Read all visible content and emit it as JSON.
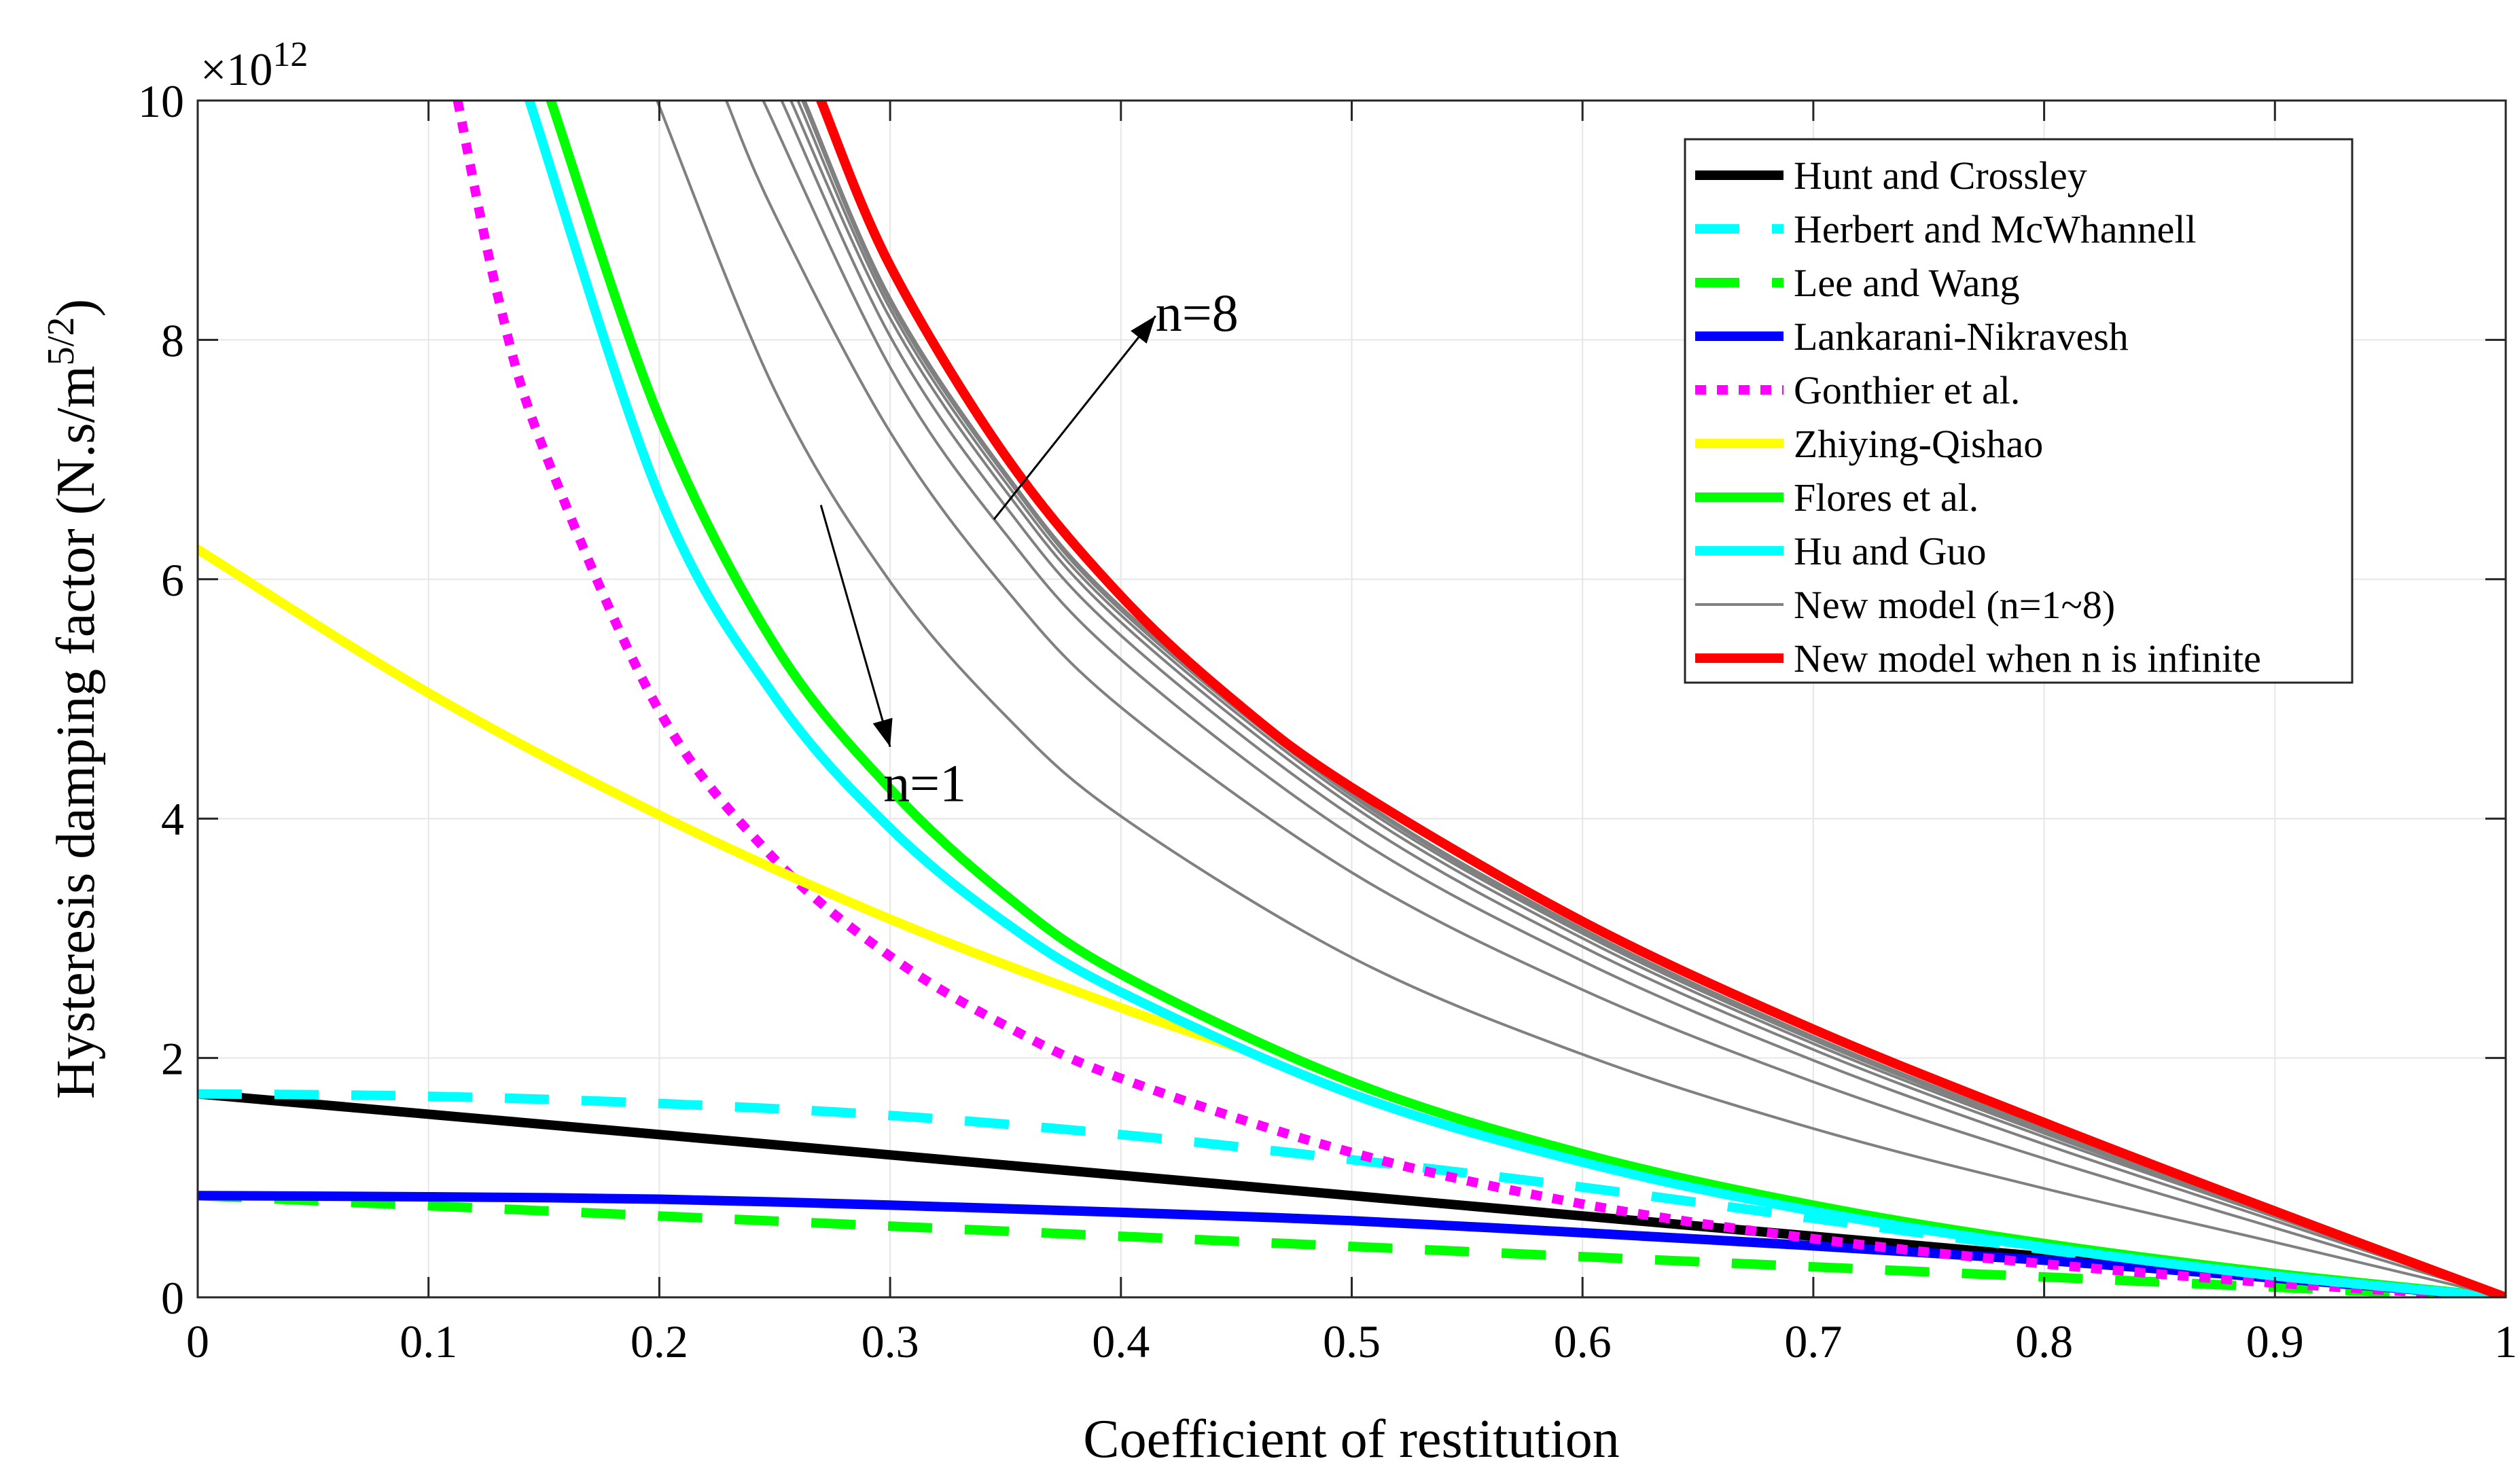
{
  "chart_data": {
    "type": "line",
    "title": "",
    "xlabel": "Coefficient of restitution",
    "ylabel": "Hysteresis damping factor (N.s/m",
    "ylabel_sup": "5/2",
    "ylabel_close": ")",
    "y_multiplier_prefix": "×10",
    "y_multiplier_exp": "12",
    "xlim": [
      0,
      1
    ],
    "ylim": [
      0,
      10
    ],
    "x_ticks": [
      0,
      0.1,
      0.2,
      0.3,
      0.4,
      0.5,
      0.6,
      0.7,
      0.8,
      0.9,
      1
    ],
    "x_tick_labels": [
      "0",
      "0.1",
      "0.2",
      "0.3",
      "0.4",
      "0.5",
      "0.6",
      "0.7",
      "0.8",
      "0.9",
      "1"
    ],
    "y_ticks": [
      0,
      2,
      4,
      6,
      8,
      10
    ],
    "y_tick_labels": [
      "0",
      "2",
      "4",
      "6",
      "8",
      "10"
    ],
    "grid": true,
    "legend_position": "top-right",
    "series": [
      {
        "name": "Hunt and Crossley",
        "color": "#000000",
        "style": "solid",
        "weight": "thick",
        "x": [
          0,
          0.2,
          0.4,
          0.6,
          0.8,
          1.0
        ],
        "y": [
          1.7,
          1.36,
          1.02,
          0.68,
          0.34,
          0
        ]
      },
      {
        "name": "Herbert and McWhannell",
        "color": "#00ffff",
        "style": "dashed",
        "weight": "thick",
        "x": [
          0,
          0.1,
          0.2,
          0.3,
          0.4,
          0.5,
          0.6,
          0.7,
          0.8,
          0.9,
          1.0
        ],
        "y": [
          1.7,
          1.68,
          1.62,
          1.52,
          1.36,
          1.15,
          0.92,
          0.66,
          0.4,
          0.16,
          0
        ]
      },
      {
        "name": "Lee and Wang",
        "color": "#00ff00",
        "style": "dashed",
        "weight": "thick",
        "x": [
          0,
          0.2,
          0.4,
          0.6,
          0.8,
          1.0
        ],
        "y": [
          0.85,
          0.68,
          0.51,
          0.34,
          0.17,
          0
        ]
      },
      {
        "name": "Lankarani-Nikravesh",
        "color": "#0000ff",
        "style": "solid",
        "weight": "thick",
        "x": [
          0,
          0.1,
          0.2,
          0.3,
          0.4,
          0.5,
          0.6,
          0.7,
          0.8,
          0.9,
          1.0
        ],
        "y": [
          0.85,
          0.84,
          0.82,
          0.77,
          0.71,
          0.64,
          0.54,
          0.43,
          0.31,
          0.16,
          0
        ]
      },
      {
        "name": "Gonthier et al.",
        "color": "#ff00ff",
        "style": "dotted",
        "weight": "thick",
        "x": [
          0.1126,
          0.13,
          0.15,
          0.2,
          0.25,
          0.3,
          0.35,
          0.4,
          0.5,
          0.6,
          0.7,
          0.8,
          0.9,
          1.0
        ],
        "y": [
          10,
          8.37,
          7.08,
          4.9,
          3.66,
          2.85,
          2.27,
          1.83,
          1.21,
          0.78,
          0.49,
          0.28,
          0.12,
          0
        ]
      },
      {
        "name": "Zhiying-Qishao",
        "color": "#ffff00",
        "style": "solid",
        "weight": "thick",
        "x": [
          0,
          0.1,
          0.2,
          0.3,
          0.4,
          0.45
        ],
        "y": [
          6.25,
          5.05,
          4.03,
          3.16,
          2.42,
          2.09
        ]
      },
      {
        "name": "Flores et al.",
        "color": "#00ff00",
        "style": "solid",
        "weight": "thick",
        "x": [
          0.153,
          0.2,
          0.25,
          0.3,
          0.35,
          0.4,
          0.5,
          0.6,
          0.7,
          0.8,
          0.9,
          1.0
        ],
        "y": [
          10,
          7.35,
          5.45,
          4.25,
          3.36,
          2.7,
          1.8,
          1.2,
          0.77,
          0.45,
          0.2,
          0
        ]
      },
      {
        "name": "Hu and Guo",
        "color": "#00ffff",
        "style": "solid",
        "weight": "thick",
        "x": [
          0.1437,
          0.2,
          0.25,
          0.3,
          0.35,
          0.4,
          0.5,
          0.6,
          0.7,
          0.8,
          0.9,
          1.0
        ],
        "y": [
          10,
          6.7,
          5.02,
          3.92,
          3.13,
          2.55,
          1.7,
          1.13,
          0.72,
          0.42,
          0.18,
          0
        ]
      },
      {
        "name": "New model (n=1~8)",
        "color": "#808080",
        "style": "solid",
        "weight": "thin",
        "n": 1,
        "x": [
          0.199,
          0.25,
          0.3,
          0.35,
          0.4,
          0.5,
          0.6,
          0.7,
          0.8,
          0.9,
          1.0
        ],
        "y": [
          10,
          7.58,
          5.98,
          4.86,
          4.02,
          2.84,
          2.03,
          1.41,
          0.91,
          0.46,
          0
        ]
      },
      {
        "name": "New model (n=1~8)",
        "color": "#808080",
        "style": "solid",
        "weight": "thin",
        "n": 2,
        "x": [
          0.229,
          0.25,
          0.3,
          0.35,
          0.4,
          0.5,
          0.6,
          0.7,
          0.8,
          0.9,
          1.0
        ],
        "y": [
          10,
          9.05,
          7.23,
          5.92,
          4.93,
          3.55,
          2.57,
          1.8,
          1.16,
          0.58,
          0
        ]
      },
      {
        "name": "New model (n=1~8)",
        "color": "#808080",
        "style": "solid",
        "weight": "thin",
        "n": 3,
        "x": [
          0.245,
          0.3,
          0.35,
          0.4,
          0.5,
          0.6,
          0.7,
          0.8,
          0.9,
          1.0
        ],
        "y": [
          10,
          7.77,
          6.38,
          5.33,
          3.86,
          2.81,
          1.98,
          1.28,
          0.64,
          0
        ]
      },
      {
        "name": "New model (n=1~8)",
        "color": "#808080",
        "style": "solid",
        "weight": "thin",
        "n": 4,
        "x": [
          0.253,
          0.3,
          0.35,
          0.4,
          0.5,
          0.6,
          0.7,
          0.8,
          0.9,
          1.0
        ],
        "y": [
          10,
          8.03,
          6.61,
          5.53,
          4.02,
          2.93,
          2.07,
          1.34,
          0.67,
          0
        ]
      },
      {
        "name": "New model (n=1~8)",
        "color": "#808080",
        "style": "solid",
        "weight": "thin",
        "n": 5,
        "x": [
          0.257,
          0.3,
          0.35,
          0.4,
          0.5,
          0.6,
          0.7,
          0.8,
          0.9,
          1.0
        ],
        "y": [
          10,
          8.18,
          6.74,
          5.64,
          4.11,
          3.0,
          2.12,
          1.37,
          0.68,
          0
        ]
      },
      {
        "name": "New model (n=1~8)",
        "color": "#808080",
        "style": "solid",
        "weight": "thin",
        "n": 6,
        "x": [
          0.26,
          0.3,
          0.35,
          0.4,
          0.5,
          0.6,
          0.7,
          0.8,
          0.9,
          1.0
        ],
        "y": [
          10,
          8.26,
          6.81,
          5.7,
          4.16,
          3.04,
          2.15,
          1.39,
          0.69,
          0
        ]
      },
      {
        "name": "New model (n=1~8)",
        "color": "#808080",
        "style": "solid",
        "weight": "thin",
        "n": 7,
        "x": [
          0.262,
          0.3,
          0.35,
          0.4,
          0.5,
          0.6,
          0.7,
          0.8,
          0.9,
          1.0
        ],
        "y": [
          10,
          8.31,
          6.86,
          5.74,
          4.19,
          3.06,
          2.16,
          1.4,
          0.7,
          0
        ]
      },
      {
        "name": "New model (n=1~8)",
        "color": "#808080",
        "style": "solid",
        "weight": "thin",
        "n": 8,
        "x": [
          0.263,
          0.3,
          0.35,
          0.4,
          0.5,
          0.6,
          0.7,
          0.8,
          0.9,
          1.0
        ],
        "y": [
          10,
          8.35,
          6.89,
          5.77,
          4.21,
          3.08,
          2.18,
          1.41,
          0.7,
          0
        ]
      },
      {
        "name": "New model when n is infinite",
        "color": "#ff0000",
        "style": "solid",
        "weight": "thick",
        "x": [
          0.27,
          0.3,
          0.35,
          0.4,
          0.45,
          0.5,
          0.6,
          0.7,
          0.8,
          0.9,
          1.0
        ],
        "y": [
          10,
          8.62,
          7.03,
          5.86,
          4.97,
          4.26,
          3.14,
          2.24,
          1.46,
          0.72,
          0
        ]
      }
    ],
    "legend": [
      {
        "label": "Hunt and Crossley",
        "color": "#000000",
        "style": "solid"
      },
      {
        "label": "Herbert and McWhannell",
        "color": "#00ffff",
        "style": "dashed"
      },
      {
        "label": "Lee and Wang",
        "color": "#00ff00",
        "style": "dashed"
      },
      {
        "label": "Lankarani-Nikravesh",
        "color": "#0000ff",
        "style": "solid"
      },
      {
        "label": "Gonthier et al.",
        "color": "#ff00ff",
        "style": "dotted"
      },
      {
        "label": "Zhiying-Qishao",
        "color": "#ffff00",
        "style": "solid"
      },
      {
        "label": "Flores et al.",
        "color": "#00ff00",
        "style": "solid"
      },
      {
        "label": "Hu and Guo",
        "color": "#00ffff",
        "style": "solid"
      },
      {
        "label": "New model (n=1~8)",
        "color": "#808080",
        "style": "thin"
      },
      {
        "label": "New model when n is infinite",
        "color": "#ff0000",
        "style": "solid"
      }
    ],
    "annotations": [
      {
        "text": "n=8",
        "arrow_from": [
          0.345,
          6.5
        ],
        "arrow_to": [
          0.415,
          8.2
        ]
      },
      {
        "text": "n=1",
        "arrow_from": [
          0.27,
          6.62
        ],
        "arrow_to": [
          0.3,
          4.6
        ]
      }
    ]
  }
}
